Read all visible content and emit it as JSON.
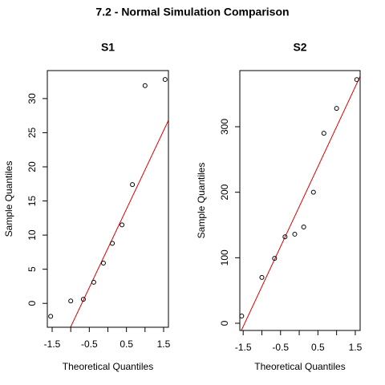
{
  "title": "7.2 - Normal Simulation Comparison",
  "chart_data": [
    {
      "type": "scatter",
      "title": "S1",
      "xlabel": "Theoretical Quantiles",
      "ylabel": "Sample Quantiles",
      "x": [
        -1.54,
        -1.0,
        -0.66,
        -0.38,
        -0.12,
        0.12,
        0.38,
        0.66,
        1.0,
        1.54
      ],
      "values": [
        -1.9,
        0.35,
        0.6,
        3.1,
        5.9,
        8.8,
        11.5,
        17.4,
        31.9,
        32.8
      ],
      "color": "#000000",
      "line": {
        "intercept": 8.06,
        "slope": 11.5,
        "color": "#dd0000"
      },
      "xlim": [
        -1.63,
        1.63
      ],
      "ylim": [
        -3.5,
        34.1
      ],
      "xticks": [
        -1.5,
        -0.5,
        0.5,
        1.5
      ],
      "xminor": [
        -1.0,
        0.0,
        1.0
      ],
      "yticks": [
        0,
        5,
        10,
        15,
        20,
        25,
        30
      ]
    },
    {
      "type": "scatter",
      "title": "S2",
      "xlabel": "Theoretical Quantiles",
      "ylabel": "Sample Quantiles",
      "x": [
        -1.54,
        -1.0,
        -0.66,
        -0.38,
        -0.12,
        0.12,
        0.38,
        0.66,
        1.0,
        1.54
      ],
      "values": [
        11,
        70,
        99,
        132,
        136,
        147,
        200,
        290,
        328,
        372
      ],
      "color": "#000000",
      "line": {
        "intercept": 178,
        "slope": 122,
        "color": "#dd0000"
      },
      "xlim": [
        -1.59,
        1.63
      ],
      "ylim": [
        -11,
        385.7
      ],
      "xticks": [
        -1.5,
        -0.5,
        0.5,
        1.5
      ],
      "xminor": [
        -1.0,
        0.0,
        1.0
      ],
      "yticks": [
        0,
        100,
        200,
        300
      ]
    }
  ]
}
